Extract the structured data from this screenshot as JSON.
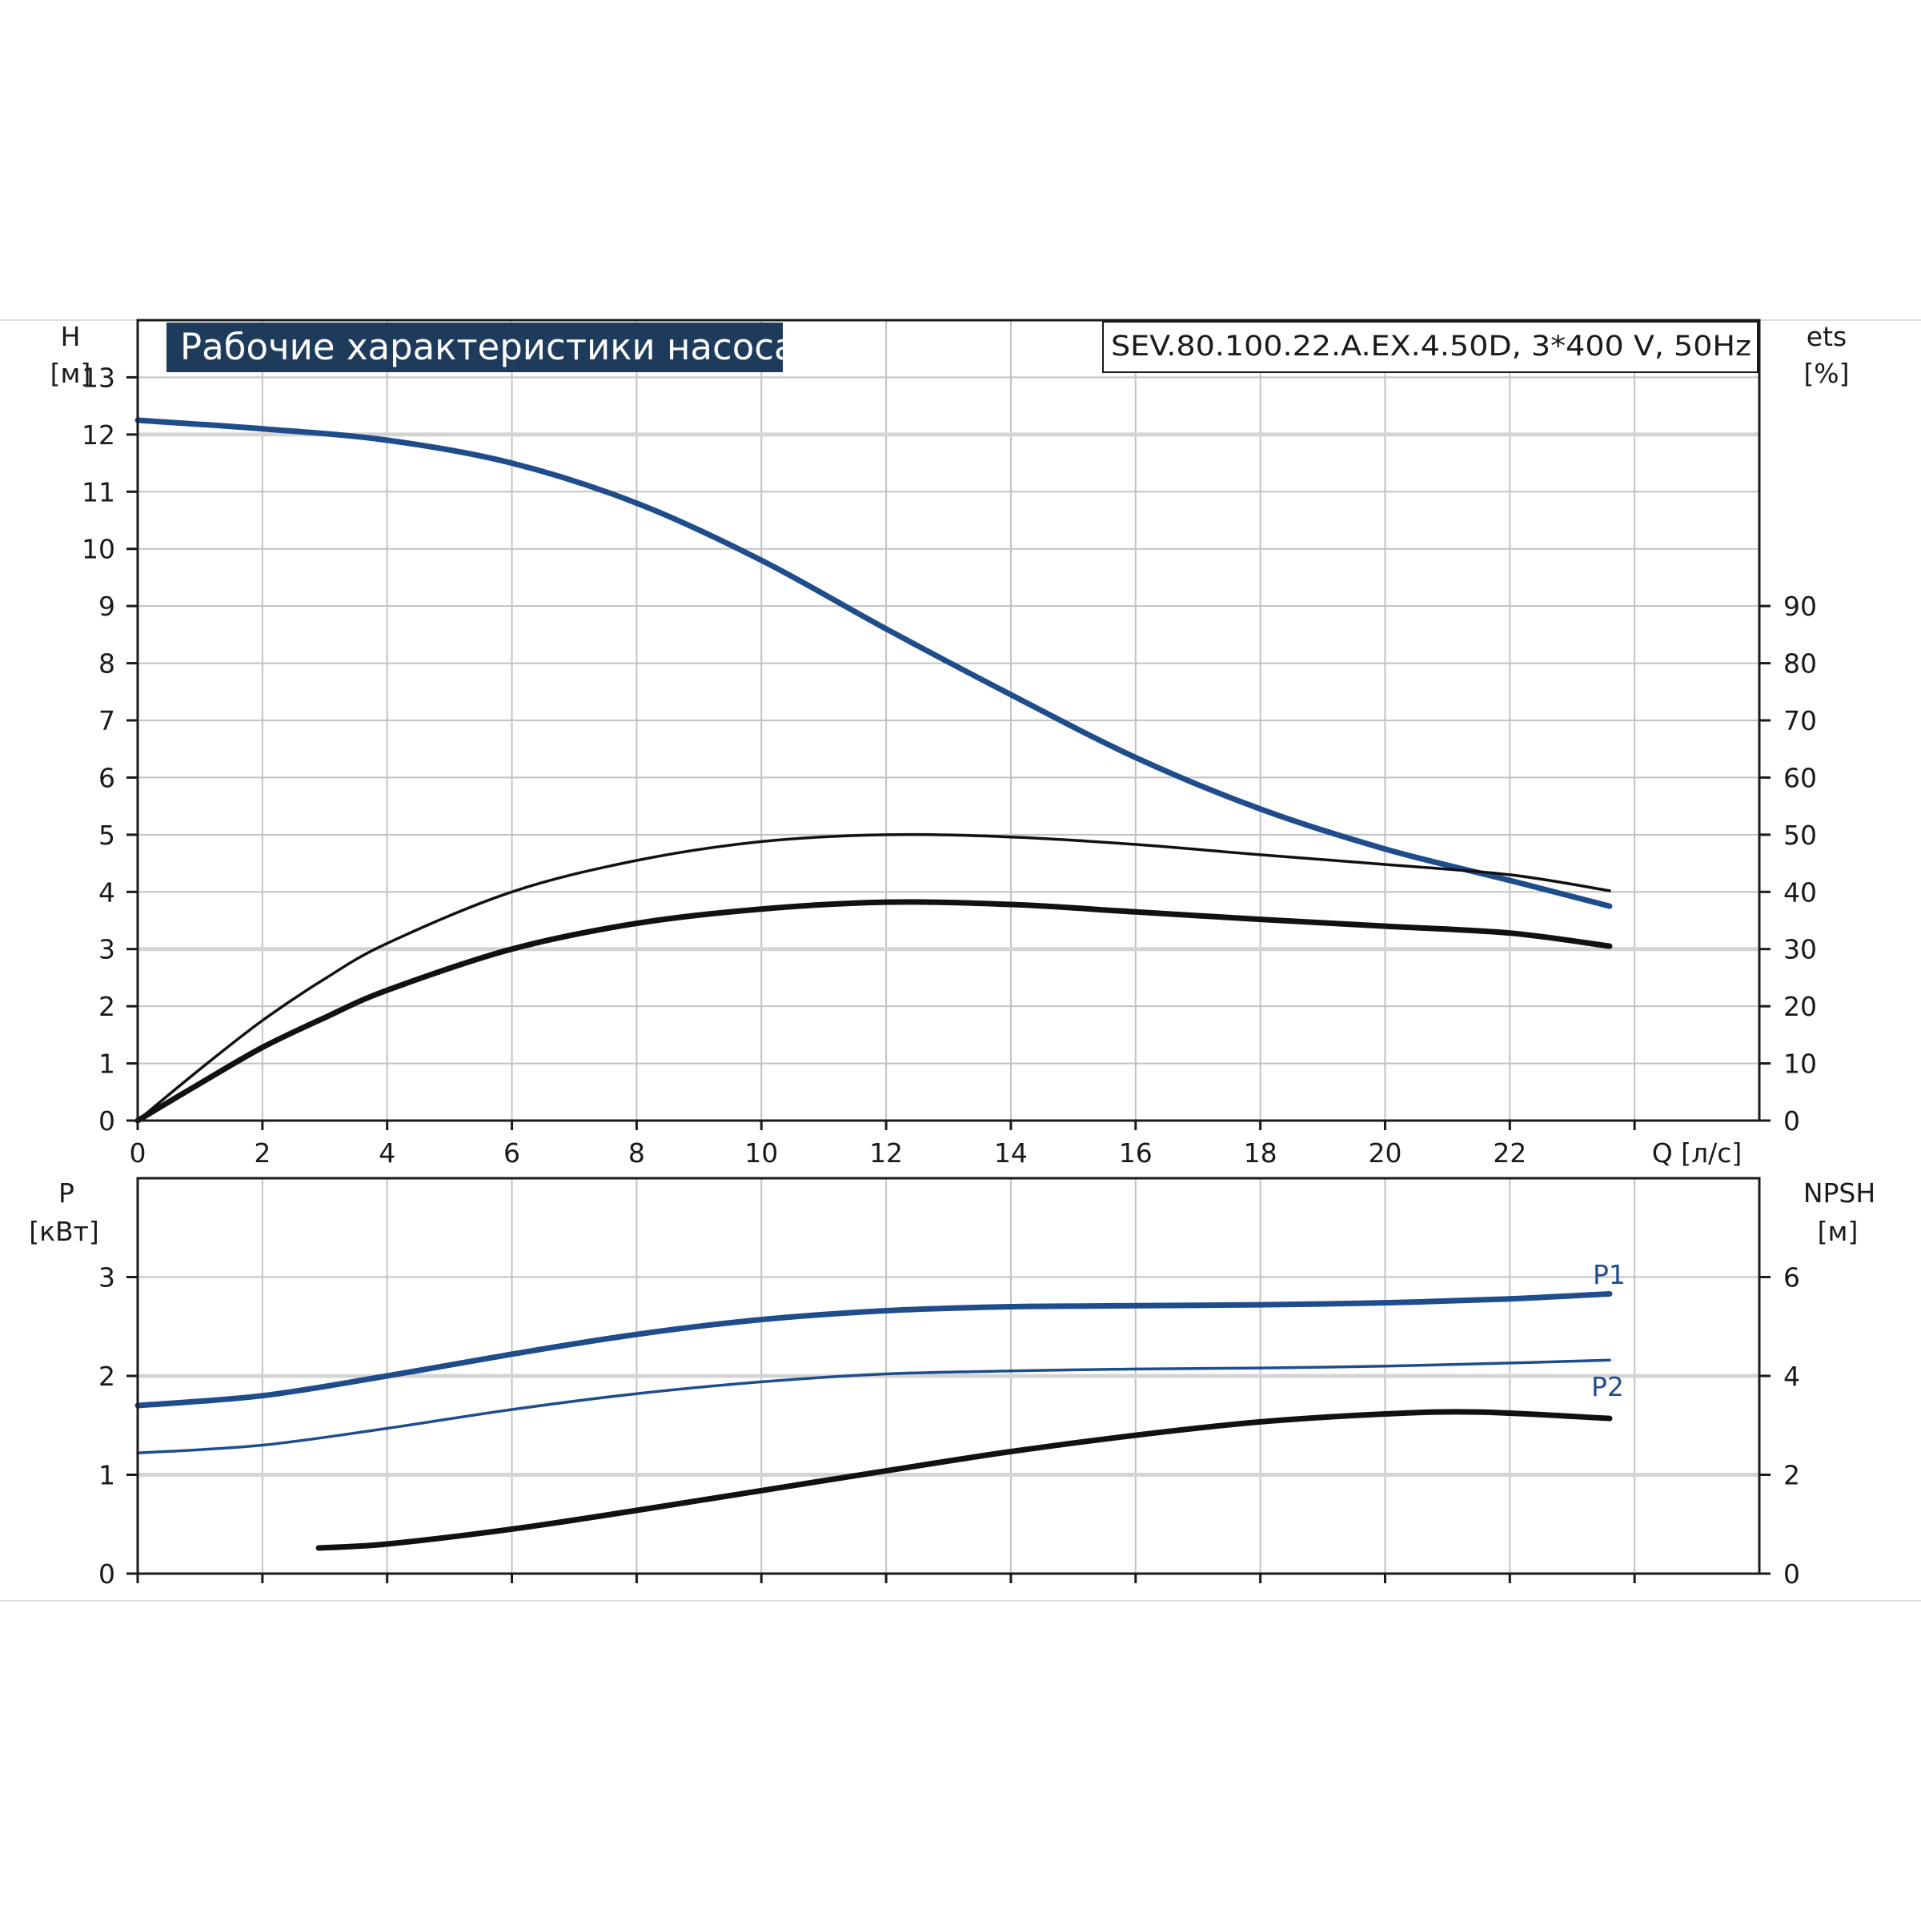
{
  "header": {
    "title": "Рабочие характеристики насоса",
    "model": "SEV.80.100.22.A.EX.4.50D, 3*400 V, 50Hz"
  },
  "chart_data": [
    {
      "type": "line",
      "x_unit_label": "Q [л/с]",
      "xlim": [
        0,
        26
      ],
      "x_ticks": [
        "0",
        "2",
        "4",
        "6",
        "8",
        "10",
        "12",
        "14",
        "16",
        "18",
        "20",
        "22"
      ],
      "left_axis": {
        "label_top": "H",
        "label_unit": "[м]",
        "ylim": [
          0,
          14
        ],
        "ticks": [
          "0",
          "1",
          "2",
          "3",
          "4",
          "5",
          "6",
          "7",
          "8",
          "9",
          "10",
          "11",
          "12",
          "13"
        ]
      },
      "right_axis": {
        "label_top": "ets",
        "label_unit": "[%]",
        "ylim": [
          0,
          140
        ],
        "ticks": [
          "0",
          "10",
          "20",
          "30",
          "40",
          "50",
          "60",
          "70",
          "80",
          "90"
        ]
      },
      "grid": true,
      "series": [
        {
          "color": "#1f4d8c",
          "axis": "left",
          "weight": "thick",
          "points": [
            [
              0,
              12.25
            ],
            [
              2,
              12.1
            ],
            [
              4,
              11.9
            ],
            [
              6,
              11.5
            ],
            [
              8,
              10.8
            ],
            [
              10,
              9.8
            ],
            [
              12,
              8.6
            ],
            [
              14,
              7.45
            ],
            [
              16,
              6.35
            ],
            [
              18,
              5.45
            ],
            [
              20,
              4.75
            ],
            [
              22,
              4.2
            ],
            [
              23.6,
              3.75
            ]
          ]
        },
        {
          "color": "#111111",
          "axis": "right",
          "weight": "thin",
          "points": [
            [
              0,
              0
            ],
            [
              1,
              9
            ],
            [
              2,
              17.5
            ],
            [
              3,
              24.8
            ],
            [
              4,
              31
            ],
            [
              6,
              40
            ],
            [
              8,
              45.5
            ],
            [
              10,
              48.8
            ],
            [
              12,
              50
            ],
            [
              14,
              49.6
            ],
            [
              16,
              48.3
            ],
            [
              18,
              46.5
            ],
            [
              20,
              44.8
            ],
            [
              22,
              43
            ],
            [
              23.6,
              40.2
            ]
          ]
        },
        {
          "color": "#111111",
          "axis": "right",
          "weight": "thick",
          "points": [
            [
              0,
              0
            ],
            [
              1,
              6.5
            ],
            [
              2,
              12.8
            ],
            [
              3,
              18
            ],
            [
              4,
              22.8
            ],
            [
              6,
              30
            ],
            [
              8,
              34.5
            ],
            [
              10,
              37
            ],
            [
              12,
              38.2
            ],
            [
              14,
              37.8
            ],
            [
              16,
              36.5
            ],
            [
              18,
              35.2
            ],
            [
              20,
              34
            ],
            [
              22,
              32.8
            ],
            [
              23.6,
              30.5
            ]
          ]
        }
      ]
    },
    {
      "type": "line",
      "xlim": [
        0,
        26
      ],
      "left_axis": {
        "label_top": "P",
        "label_unit": "[кВт]",
        "ylim": [
          0,
          4
        ],
        "ticks": [
          "0",
          "1",
          "2",
          "3"
        ]
      },
      "right_axis": {
        "label_top": "NPSH",
        "label_unit": "[м]",
        "ylim": [
          0,
          8
        ],
        "ticks": [
          "0",
          "2",
          "4",
          "6"
        ]
      },
      "grid": true,
      "series": [
        {
          "name": "P1",
          "color": "#1f4d8c",
          "axis": "left",
          "weight": "thick",
          "points": [
            [
              0,
              1.7
            ],
            [
              2,
              1.8
            ],
            [
              4,
              2.0
            ],
            [
              6,
              2.22
            ],
            [
              8,
              2.42
            ],
            [
              10,
              2.57
            ],
            [
              12,
              2.66
            ],
            [
              14,
              2.7
            ],
            [
              16,
              2.71
            ],
            [
              18,
              2.72
            ],
            [
              20,
              2.74
            ],
            [
              22,
              2.78
            ],
            [
              23.6,
              2.83
            ]
          ]
        },
        {
          "name": "P2",
          "color": "#1f4d8c",
          "axis": "left",
          "weight": "thin",
          "points": [
            [
              0,
              1.22
            ],
            [
              2,
              1.3
            ],
            [
              4,
              1.47
            ],
            [
              6,
              1.66
            ],
            [
              8,
              1.82
            ],
            [
              10,
              1.94
            ],
            [
              12,
              2.02
            ],
            [
              14,
              2.05
            ],
            [
              16,
              2.07
            ],
            [
              18,
              2.08
            ],
            [
              20,
              2.1
            ],
            [
              22,
              2.13
            ],
            [
              23.6,
              2.16
            ]
          ]
        },
        {
          "color": "#111111",
          "axis": "right",
          "weight": "thick",
          "points": [
            [
              2.9,
              0.52
            ],
            [
              4,
              0.6
            ],
            [
              6,
              0.9
            ],
            [
              8,
              1.28
            ],
            [
              10,
              1.68
            ],
            [
              12,
              2.08
            ],
            [
              14,
              2.47
            ],
            [
              16,
              2.8
            ],
            [
              18,
              3.07
            ],
            [
              20,
              3.23
            ],
            [
              21.5,
              3.27
            ],
            [
              23.6,
              3.14
            ]
          ]
        }
      ]
    }
  ]
}
